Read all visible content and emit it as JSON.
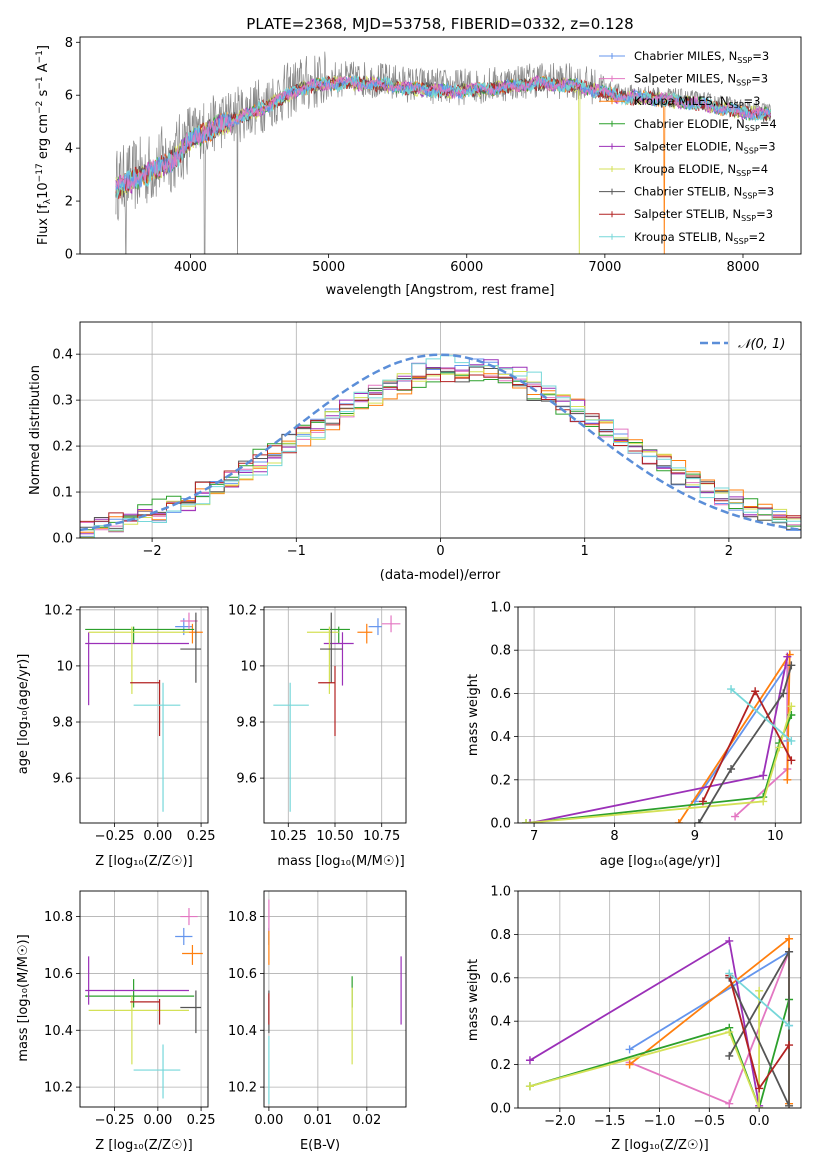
{
  "colors": {
    "Chabrier MILES": "#6495ed",
    "Salpeter MILES": "#e377c2",
    "Kroupa MILES": "#ff7f0e",
    "Chabrier ELODIE": "#2ca02c",
    "Salpeter ELODIE": "#9b30b8",
    "Kroupa ELODIE": "#d4e157",
    "Chabrier STELIB": "#555555",
    "Salpeter STELIB": "#b22222",
    "Kroupa STELIB": "#76d7d9",
    "normal": "#5b8ed8",
    "grid": "#b0b0b0"
  },
  "chart_data": [
    {
      "id": "spectrum",
      "type": "line",
      "title": "PLATE=2368, MJD=53758, FIBERID=0332, z=0.128",
      "xlabel": "wavelength [Angstrom, rest frame]",
      "ylabel": "Flux [f_λ 10^-17 erg cm^-2 s^-1 A^-1]",
      "xlim": [
        3200,
        8420
      ],
      "ylim": [
        0,
        8.2
      ],
      "xticks": [
        4000,
        5000,
        6000,
        7000,
        8000
      ],
      "yticks": [
        0,
        2,
        4,
        6,
        8
      ],
      "grid": false,
      "legend_position": "top-right",
      "series": [
        {
          "name": "Chabrier MILES, N_SSP=3",
          "label": "Chabrier MILES, N",
          "sub": "SSP",
          "tail": "=3"
        },
        {
          "name": "Salpeter MILES, N_SSP=3",
          "label": "Salpeter MILES, N",
          "sub": "SSP",
          "tail": "=3"
        },
        {
          "name": "Kroupa MILES, N_SSP=3",
          "label": "Kroupa MILES, N",
          "sub": "SSP",
          "tail": "=3"
        },
        {
          "name": "Chabrier ELODIE, N_SSP=4",
          "label": "Chabrier ELODIE, N",
          "sub": "SSP",
          "tail": "=4"
        },
        {
          "name": "Salpeter ELODIE, N_SSP=3",
          "label": "Salpeter ELODIE, N",
          "sub": "SSP",
          "tail": "=3"
        },
        {
          "name": "Kroupa ELODIE, N_SSP=4",
          "label": "Kroupa ELODIE, N",
          "sub": "SSP",
          "tail": "=4"
        },
        {
          "name": "Chabrier STELIB, N_SSP=3",
          "label": "Chabrier STELIB, N",
          "sub": "SSP",
          "tail": "=3"
        },
        {
          "name": "Salpeter STELIB, N_SSP=3",
          "label": "Salpeter STELIB, N",
          "sub": "SSP",
          "tail": "=3"
        },
        {
          "name": "Kroupa STELIB, N_SSP=2",
          "label": "Kroupa STELIB, N",
          "sub": "SSP",
          "tail": "=2"
        }
      ],
      "continuum_anchors": {
        "x": [
          3450,
          3700,
          3900,
          4000,
          4200,
          4500,
          4800,
          5000,
          5300,
          5600,
          5900,
          6200,
          6500,
          6800,
          7100,
          7400,
          7700,
          8000,
          8200
        ],
        "y": [
          2.6,
          3.2,
          3.8,
          4.5,
          5.0,
          5.6,
          6.4,
          6.6,
          6.6,
          6.4,
          6.3,
          6.4,
          6.6,
          6.5,
          6.1,
          6.0,
          5.8,
          5.5,
          5.4
        ]
      }
    },
    {
      "id": "residuals",
      "type": "histogram",
      "xlabel": "(data-model)/error",
      "ylabel": "Normed distribution",
      "xlim": [
        -2.5,
        2.5
      ],
      "ylim": [
        0,
        0.47
      ],
      "xticks": [
        -2,
        -1,
        0,
        1,
        2
      ],
      "yticks": [
        0.0,
        0.1,
        0.2,
        0.3,
        0.4
      ],
      "grid": true,
      "legend_label": "𝒩(0, 1)",
      "legend_position": "top-right",
      "bin_width": 0.1
    },
    {
      "id": "age_vs_Z",
      "type": "scatter",
      "xlabel": "Z [log₁₀(Z/Z☉)]",
      "ylabel": "age  [log₁₀(age/yr)]",
      "xlim": [
        -0.45,
        0.29
      ],
      "ylim": [
        9.44,
        10.21
      ],
      "xticks": [
        -0.25,
        0.0,
        0.25
      ],
      "xticklabels": [
        "−0.25",
        "0.00",
        "0.25"
      ],
      "yticks": [
        9.6,
        9.8,
        10.0,
        10.2
      ],
      "grid": true,
      "points": [
        {
          "model": "Chabrier MILES",
          "x": 0.15,
          "xerr": [
            0.05,
            0.05
          ],
          "y": 10.14,
          "yerr": [
            0.03,
            0.03
          ]
        },
        {
          "model": "Salpeter MILES",
          "x": 0.18,
          "xerr": [
            0.05,
            0.05
          ],
          "y": 10.16,
          "yerr": [
            0.03,
            0.03
          ]
        },
        {
          "model": "Kroupa MILES",
          "x": 0.2,
          "xerr": [
            0.06,
            0.06
          ],
          "y": 10.12,
          "yerr": [
            0.04,
            0.03
          ]
        },
        {
          "model": "Chabrier ELODIE",
          "x": -0.14,
          "xerr": [
            0.28,
            0.35
          ],
          "y": 10.13,
          "yerr": [
            0.05,
            0.01
          ]
        },
        {
          "model": "Salpeter ELODIE",
          "x": -0.4,
          "xerr": [
            0.02,
            0.58
          ],
          "y": 10.08,
          "yerr": [
            0.22,
            0.04
          ]
        },
        {
          "model": "Kroupa ELODIE",
          "x": -0.15,
          "xerr": [
            0.25,
            0.33
          ],
          "y": 10.12,
          "yerr": [
            0.22,
            0.02
          ]
        },
        {
          "model": "Chabrier STELIB",
          "x": 0.22,
          "xerr": [
            0.09,
            0.03
          ],
          "y": 10.06,
          "yerr": [
            0.12,
            0.13
          ]
        },
        {
          "model": "Salpeter STELIB",
          "x": 0.01,
          "xerr": [
            0.17,
            0.0
          ],
          "y": 9.94,
          "yerr": [
            0.19,
            0.01
          ]
        },
        {
          "model": "Kroupa STELIB",
          "x": 0.03,
          "xerr": [
            0.17,
            0.1
          ],
          "y": 9.86,
          "yerr": [
            0.38,
            0.08
          ]
        }
      ]
    },
    {
      "id": "age_vs_mass",
      "type": "scatter",
      "xlabel": "mass [log₁₀(M/M☉)]",
      "ylabel": "",
      "xlim": [
        10.12,
        10.88
      ],
      "ylim": [
        9.44,
        10.21
      ],
      "xticks": [
        10.25,
        10.5,
        10.75
      ],
      "xticklabels": [
        "10.25",
        "10.50",
        "10.75"
      ],
      "yticks": [
        9.6,
        9.8,
        10.0,
        10.2
      ],
      "grid": true,
      "points": [
        {
          "model": "Chabrier MILES",
          "x": 10.73,
          "xerr": [
            0.05,
            0.02
          ],
          "y": 10.14,
          "yerr": [
            0.03,
            0.03
          ]
        },
        {
          "model": "Salpeter MILES",
          "x": 10.8,
          "xerr": [
            0.05,
            0.05
          ],
          "y": 10.15,
          "yerr": [
            0.03,
            0.03
          ]
        },
        {
          "model": "Kroupa MILES",
          "x": 10.67,
          "xerr": [
            0.05,
            0.03
          ],
          "y": 10.12,
          "yerr": [
            0.04,
            0.03
          ]
        },
        {
          "model": "Chabrier ELODIE",
          "x": 10.52,
          "xerr": [
            0.1,
            0.06
          ],
          "y": 10.13,
          "yerr": [
            0.05,
            0.01
          ]
        },
        {
          "model": "Salpeter ELODIE",
          "x": 10.54,
          "xerr": [
            0.1,
            0.06
          ],
          "y": 10.08,
          "yerr": [
            0.15,
            0.04
          ]
        },
        {
          "model": "Kroupa ELODIE",
          "x": 10.47,
          "xerr": [
            0.12,
            0.05
          ],
          "y": 10.12,
          "yerr": [
            0.22,
            0.02
          ]
        },
        {
          "model": "Chabrier STELIB",
          "x": 10.48,
          "xerr": [
            0.06,
            0.06
          ],
          "y": 10.06,
          "yerr": [
            0.12,
            0.13
          ]
        },
        {
          "model": "Salpeter STELIB",
          "x": 10.5,
          "xerr": [
            0.09,
            0.0
          ],
          "y": 9.94,
          "yerr": [
            0.19,
            0.06
          ]
        },
        {
          "model": "Kroupa STELIB",
          "x": 10.26,
          "xerr": [
            0.09,
            0.1
          ],
          "y": 9.86,
          "yerr": [
            0.38,
            0.08
          ]
        }
      ]
    },
    {
      "id": "weight_vs_age",
      "type": "line",
      "xlabel": "age  [log₁₀(age/yr)]",
      "ylabel": "mass weight",
      "xlim": [
        6.8,
        10.32
      ],
      "ylim": [
        0,
        1.0
      ],
      "xticks": [
        7,
        8,
        9,
        10
      ],
      "yticks": [
        0.0,
        0.2,
        0.4,
        0.6,
        0.8,
        1.0
      ],
      "grid": true,
      "series": [
        {
          "model": "Chabrier MILES",
          "x": [
            9.0,
            10.15,
            10.15
          ],
          "y": [
            0.1,
            0.73,
            0.38
          ]
        },
        {
          "model": "Salpeter MILES",
          "x": [
            9.5,
            10.15,
            10.15
          ],
          "y": [
            0.03,
            0.25,
            0.73
          ]
        },
        {
          "model": "Kroupa MILES",
          "x": [
            8.8,
            10.18,
            10.15
          ],
          "y": [
            0.0,
            0.78,
            0.2
          ]
        },
        {
          "model": "Chabrier ELODIE",
          "x": [
            6.9,
            9.85,
            10.05,
            10.2
          ],
          "y": [
            0.0,
            0.12,
            0.37,
            0.5
          ]
        },
        {
          "model": "Salpeter ELODIE",
          "x": [
            6.95,
            9.85,
            10.15
          ],
          "y": [
            0.0,
            0.22,
            0.77
          ]
        },
        {
          "model": "Kroupa ELODIE",
          "x": [
            6.9,
            9.85,
            10.05,
            10.2
          ],
          "y": [
            0.0,
            0.1,
            0.35,
            0.54
          ]
        },
        {
          "model": "Chabrier STELIB",
          "x": [
            9.05,
            9.45,
            10.1,
            10.2
          ],
          "y": [
            0.0,
            0.25,
            0.6,
            0.73
          ]
        },
        {
          "model": "Salpeter STELIB",
          "x": [
            9.1,
            9.75,
            10.2
          ],
          "y": [
            0.1,
            0.61,
            0.29
          ]
        },
        {
          "model": "Kroupa STELIB",
          "x": [
            9.45,
            10.2
          ],
          "y": [
            0.62,
            0.38
          ]
        }
      ]
    },
    {
      "id": "mass_vs_Z",
      "type": "scatter",
      "xlabel": "Z [log₁₀(Z/Z☉)]",
      "ylabel": "mass [log₁₀(M/M☉)]",
      "xlim": [
        -0.45,
        0.29
      ],
      "ylim": [
        10.13,
        10.89
      ],
      "xticks": [
        -0.25,
        0.0,
        0.25
      ],
      "xticklabels": [
        "−0.25",
        "0.00",
        "0.25"
      ],
      "yticks": [
        10.2,
        10.4,
        10.6,
        10.8
      ],
      "grid": true,
      "points": [
        {
          "model": "Chabrier MILES",
          "x": 0.15,
          "xerr": [
            0.05,
            0.05
          ],
          "y": 10.73,
          "yerr": [
            0.03,
            0.03
          ]
        },
        {
          "model": "Salpeter MILES",
          "x": 0.18,
          "xerr": [
            0.05,
            0.05
          ],
          "y": 10.8,
          "yerr": [
            0.03,
            0.03
          ]
        },
        {
          "model": "Kroupa MILES",
          "x": 0.2,
          "xerr": [
            0.06,
            0.06
          ],
          "y": 10.67,
          "yerr": [
            0.04,
            0.03
          ]
        },
        {
          "model": "Chabrier ELODIE",
          "x": -0.14,
          "xerr": [
            0.28,
            0.35
          ],
          "y": 10.52,
          "yerr": [
            0.04,
            0.06
          ]
        },
        {
          "model": "Salpeter ELODIE",
          "x": -0.4,
          "xerr": [
            0.02,
            0.58
          ],
          "y": 10.54,
          "yerr": [
            0.05,
            0.12
          ]
        },
        {
          "model": "Kroupa ELODIE",
          "x": -0.15,
          "xerr": [
            0.25,
            0.33
          ],
          "y": 10.47,
          "yerr": [
            0.19,
            0.05
          ]
        },
        {
          "model": "Chabrier STELIB",
          "x": 0.22,
          "xerr": [
            0.09,
            0.03
          ],
          "y": 10.48,
          "yerr": [
            0.09,
            0.06
          ]
        },
        {
          "model": "Salpeter STELIB",
          "x": 0.01,
          "xerr": [
            0.17,
            0.0
          ],
          "y": 10.5,
          "yerr": [
            0.08,
            0.01
          ]
        },
        {
          "model": "Kroupa STELIB",
          "x": 0.03,
          "xerr": [
            0.17,
            0.1
          ],
          "y": 10.26,
          "yerr": [
            0.1,
            0.09
          ]
        }
      ]
    },
    {
      "id": "mass_vs_ebv",
      "type": "scatter",
      "xlabel": "E(B-V)",
      "ylabel": "",
      "xlim": [
        -0.001,
        0.028
      ],
      "ylim": [
        10.13,
        10.89
      ],
      "xticks": [
        0.0,
        0.01,
        0.02
      ],
      "xticklabels": [
        "0.00",
        "0.01",
        "0.02"
      ],
      "yticks": [
        10.2,
        10.4,
        10.6,
        10.8
      ],
      "grid": true,
      "points": [
        {
          "model": "Chabrier MILES",
          "x": 0.0,
          "y": 10.73,
          "yerr": [
            0.03,
            0.03
          ]
        },
        {
          "model": "Salpeter MILES",
          "x": 0.0,
          "y": 10.8,
          "yerr": [
            0.05,
            0.06
          ]
        },
        {
          "model": "Kroupa MILES",
          "x": 0.0,
          "y": 10.67,
          "yerr": [
            0.04,
            0.08
          ]
        },
        {
          "model": "Chabrier ELODIE",
          "x": 0.017,
          "y": 10.52,
          "yerr": [
            0.04,
            0.07
          ]
        },
        {
          "model": "Salpeter ELODIE",
          "x": 0.027,
          "y": 10.54,
          "yerr": [
            0.12,
            0.12
          ]
        },
        {
          "model": "Kroupa ELODIE",
          "x": 0.017,
          "y": 10.47,
          "yerr": [
            0.19,
            0.08
          ]
        },
        {
          "model": "Chabrier STELIB",
          "x": 0.0,
          "y": 10.48,
          "yerr": [
            0.09,
            0.06
          ]
        },
        {
          "model": "Salpeter STELIB",
          "x": 0.0,
          "y": 10.5,
          "yerr": [
            0.08,
            0.03
          ]
        },
        {
          "model": "Kroupa STELIB",
          "x": 0.0,
          "y": 10.26,
          "yerr": [
            0.12,
            0.12
          ]
        }
      ]
    },
    {
      "id": "weight_vs_Z",
      "type": "line",
      "xlabel": "Z [log₁₀(Z/Z☉)]",
      "ylabel": "mass weight",
      "xlim": [
        -2.42,
        0.42
      ],
      "ylim": [
        0,
        1.0
      ],
      "xticks": [
        -2.0,
        -1.5,
        -1.0,
        -0.5,
        0.0
      ],
      "xticklabels": [
        "−2.0",
        "−1.5",
        "−1.0",
        "−0.5",
        "0.0"
      ],
      "yticks": [
        0.0,
        0.2,
        0.4,
        0.6,
        0.8,
        1.0
      ],
      "grid": true,
      "series": [
        {
          "model": "Chabrier MILES",
          "x": [
            -1.3,
            0.3,
            0.3
          ],
          "y": [
            0.27,
            0.72,
            0.38
          ]
        },
        {
          "model": "Salpeter MILES",
          "x": [
            -1.3,
            -0.3,
            0.3
          ],
          "y": [
            0.21,
            0.02,
            0.72
          ]
        },
        {
          "model": "Kroupa MILES",
          "x": [
            -1.3,
            0.3,
            0.3
          ],
          "y": [
            0.2,
            0.78,
            0.02
          ]
        },
        {
          "model": "Chabrier ELODIE",
          "x": [
            -2.3,
            -0.3,
            0.0,
            0.3
          ],
          "y": [
            0.1,
            0.37,
            0.0,
            0.5
          ]
        },
        {
          "model": "Salpeter ELODIE",
          "x": [
            -2.3,
            -0.3,
            0.0
          ],
          "y": [
            0.22,
            0.77,
            0.01
          ]
        },
        {
          "model": "Kroupa ELODIE",
          "x": [
            -2.3,
            -0.3,
            0.0,
            0.0
          ],
          "y": [
            0.1,
            0.35,
            0.0,
            0.54
          ]
        },
        {
          "model": "Chabrier STELIB",
          "x": [
            -0.3,
            0.3,
            0.3,
            -0.3
          ],
          "y": [
            0.24,
            0.72,
            0.01,
            0.6
          ]
        },
        {
          "model": "Salpeter STELIB",
          "x": [
            -0.3,
            0.0,
            0.3
          ],
          "y": [
            0.61,
            0.09,
            0.29
          ]
        },
        {
          "model": "Kroupa STELIB",
          "x": [
            -0.3,
            0.3
          ],
          "y": [
            0.62,
            0.38
          ]
        }
      ]
    }
  ]
}
